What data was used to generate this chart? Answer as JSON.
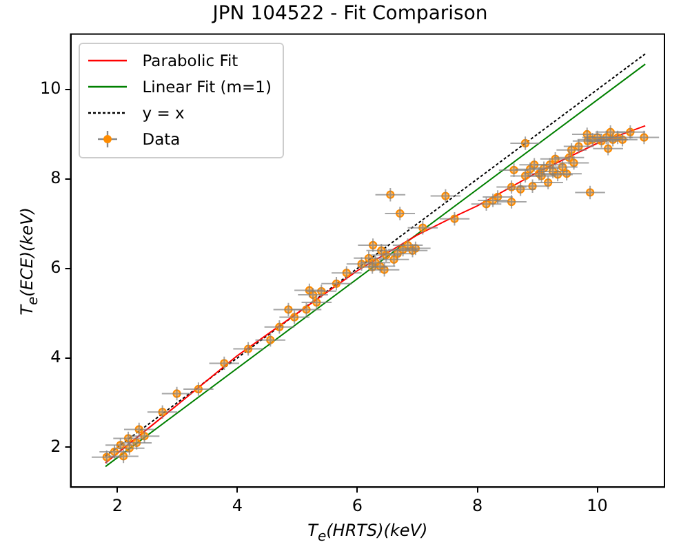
{
  "chart_data": {
    "type": "scatter",
    "title": "JPN 104522 - Fit Comparison",
    "xlabel": "T$_{e}$(HRTS)(keV)",
    "ylabel": "T$_{e}$(ECE)(keV)",
    "xlim": [
      1.22,
      11.12
    ],
    "ylim": [
      1.11,
      11.24
    ],
    "xticks": [
      2,
      4,
      6,
      8,
      10
    ],
    "yticks": [
      2,
      4,
      6,
      8,
      10
    ],
    "grid": false,
    "legend": "top left",
    "series": [
      {
        "name": "Parabolic Fit",
        "type": "line",
        "marker": "none",
        "line_style": "solid",
        "color": "#ff0000",
        "x": [
          1.8,
          3,
          4,
          5,
          6,
          7,
          7.6,
          8,
          9,
          10,
          10.8
        ],
        "values": [
          1.65,
          2.95,
          4.05,
          5.0,
          5.95,
          6.75,
          7.15,
          7.4,
          8.15,
          8.8,
          9.19
        ]
      },
      {
        "name": "Linear Fit (m=1)",
        "type": "line",
        "marker": "none",
        "line_style": "solid",
        "color": "#008000",
        "x": [
          1.8,
          10.8
        ],
        "values": [
          1.57,
          10.57
        ]
      },
      {
        "name": "y = x",
        "type": "line",
        "marker": "none",
        "line_style": "dotted",
        "color": "#000000",
        "x": [
          1.8,
          10.8
        ],
        "values": [
          1.8,
          10.8
        ]
      },
      {
        "name": "Data",
        "marker": "circle",
        "color": "#ff8c00",
        "x": [
          1.82,
          1.95,
          2.1,
          2.05,
          2.2,
          2.18,
          2.32,
          2.36,
          2.45,
          2.75,
          2.99,
          3.35,
          3.78,
          4.18,
          4.55,
          4.7,
          4.85,
          4.95,
          5.15,
          5.2,
          5.26,
          5.32,
          5.4,
          5.65,
          5.82,
          6.07,
          6.19,
          6.25,
          6.26,
          6.3,
          6.38,
          6.4,
          6.45,
          6.48,
          6.55,
          6.61,
          6.67,
          6.71,
          6.76,
          6.84,
          6.92,
          6.97,
          7.09,
          7.47,
          7.62,
          8.15,
          8.26,
          8.34,
          8.57,
          8.57,
          8.61,
          8.72,
          8.8,
          8.8,
          8.88,
          8.92,
          8.95,
          9.03,
          9.07,
          9.11,
          9.18,
          9.21,
          9.26,
          9.3,
          9.34,
          9.42,
          9.49,
          9.53,
          9.57,
          9.61,
          9.69,
          9.83,
          9.84,
          9.88,
          9.92,
          10.0,
          10.07,
          10.15,
          10.18,
          10.22,
          10.26,
          10.34,
          10.42,
          10.55,
          10.78
        ],
        "values": [
          1.78,
          1.9,
          1.8,
          2.05,
          1.98,
          2.2,
          2.1,
          2.4,
          2.25,
          2.79,
          3.2,
          3.3,
          3.88,
          4.2,
          4.4,
          4.69,
          5.08,
          4.91,
          5.08,
          5.51,
          5.41,
          5.24,
          5.49,
          5.66,
          5.9,
          6.1,
          6.23,
          6.03,
          6.52,
          6.13,
          6.05,
          6.4,
          5.97,
          6.3,
          7.65,
          6.2,
          6.33,
          7.23,
          6.42,
          6.52,
          6.4,
          6.45,
          6.91,
          7.62,
          7.11,
          7.44,
          7.52,
          7.6,
          7.49,
          7.82,
          8.2,
          7.77,
          8.8,
          8.07,
          8.22,
          7.84,
          8.32,
          8.12,
          8.07,
          8.24,
          7.92,
          8.32,
          8.17,
          8.45,
          8.1,
          8.27,
          8.12,
          8.48,
          8.65,
          8.36,
          8.73,
          9.0,
          8.85,
          7.7,
          8.88,
          8.93,
          8.85,
          8.93,
          8.68,
          9.05,
          8.88,
          8.93,
          8.88,
          9.05,
          8.93
        ],
        "errors": [
          0.15,
          0.15,
          0.15,
          0.15,
          0.15,
          0.15,
          0.15,
          0.15,
          0.15,
          0.15,
          0.15,
          0.15,
          0.15,
          0.15,
          0.15,
          0.15,
          0.15,
          0.15,
          0.15,
          0.15,
          0.15,
          0.15,
          0.15,
          0.15,
          0.15,
          0.15,
          0.15,
          0.15,
          0.15,
          0.15,
          0.15,
          0.15,
          0.15,
          0.15,
          0.15,
          0.15,
          0.15,
          0.15,
          0.15,
          0.15,
          0.15,
          0.15,
          0.15,
          0.15,
          0.15,
          0.15,
          0.15,
          0.15,
          0.15,
          0.15,
          0.15,
          0.15,
          0.15,
          0.15,
          0.15,
          0.15,
          0.15,
          0.15,
          0.15,
          0.15,
          0.15,
          0.15,
          0.15,
          0.15,
          0.15,
          0.15,
          0.15,
          0.15,
          0.15,
          0.15,
          0.15,
          0.15,
          0.15,
          0.15,
          0.15,
          0.15,
          0.15,
          0.15,
          0.15,
          0.15,
          0.15,
          0.15,
          0.15,
          0.15,
          0.15
        ],
        "xerrors": [
          0.25,
          0.25,
          0.25,
          0.25,
          0.25,
          0.25,
          0.25,
          0.25,
          0.25,
          0.25,
          0.25,
          0.25,
          0.25,
          0.25,
          0.25,
          0.25,
          0.25,
          0.25,
          0.25,
          0.25,
          0.25,
          0.25,
          0.25,
          0.25,
          0.25,
          0.25,
          0.25,
          0.25,
          0.25,
          0.25,
          0.25,
          0.25,
          0.25,
          0.25,
          0.25,
          0.25,
          0.25,
          0.25,
          0.25,
          0.25,
          0.25,
          0.25,
          0.25,
          0.25,
          0.25,
          0.25,
          0.25,
          0.25,
          0.25,
          0.25,
          0.25,
          0.25,
          0.25,
          0.25,
          0.25,
          0.25,
          0.25,
          0.25,
          0.25,
          0.25,
          0.25,
          0.25,
          0.25,
          0.25,
          0.25,
          0.25,
          0.25,
          0.25,
          0.25,
          0.25,
          0.25,
          0.25,
          0.25,
          0.25,
          0.25,
          0.25,
          0.25,
          0.25,
          0.25,
          0.25,
          0.25,
          0.25,
          0.25,
          0.25,
          0.25
        ]
      }
    ]
  }
}
